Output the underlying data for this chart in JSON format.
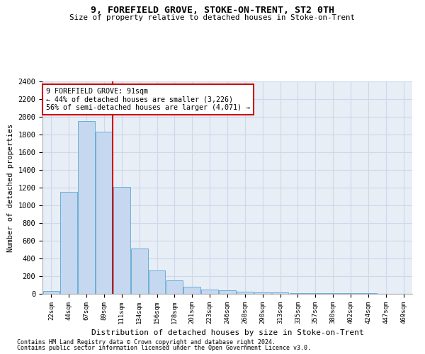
{
  "title1": "9, FOREFIELD GROVE, STOKE-ON-TRENT, ST2 0TH",
  "title2": "Size of property relative to detached houses in Stoke-on-Trent",
  "xlabel": "Distribution of detached houses by size in Stoke-on-Trent",
  "ylabel": "Number of detached properties",
  "categories": [
    "22sqm",
    "44sqm",
    "67sqm",
    "89sqm",
    "111sqm",
    "134sqm",
    "156sqm",
    "178sqm",
    "201sqm",
    "223sqm",
    "246sqm",
    "268sqm",
    "290sqm",
    "313sqm",
    "335sqm",
    "357sqm",
    "380sqm",
    "402sqm",
    "424sqm",
    "447sqm",
    "469sqm"
  ],
  "values": [
    30,
    1150,
    1950,
    1830,
    1210,
    510,
    265,
    155,
    80,
    50,
    40,
    25,
    20,
    15,
    10,
    5,
    5,
    5,
    5,
    2,
    2
  ],
  "bar_color": "#c5d8ef",
  "bar_edge_color": "#6baed6",
  "grid_color": "#cdd8eb",
  "bg_color": "#e8eef6",
  "annotation_text": "9 FOREFIELD GROVE: 91sqm\n← 44% of detached houses are smaller (3,226)\n56% of semi-detached houses are larger (4,071) →",
  "vline_x_idx": 3,
  "vline_color": "#cc0000",
  "annotation_box_edgecolor": "#cc0000",
  "ylim": [
    0,
    2400
  ],
  "yticks": [
    0,
    200,
    400,
    600,
    800,
    1000,
    1200,
    1400,
    1600,
    1800,
    2000,
    2200,
    2400
  ],
  "footer1": "Contains HM Land Registry data © Crown copyright and database right 2024.",
  "footer2": "Contains public sector information licensed under the Open Government Licence v3.0."
}
